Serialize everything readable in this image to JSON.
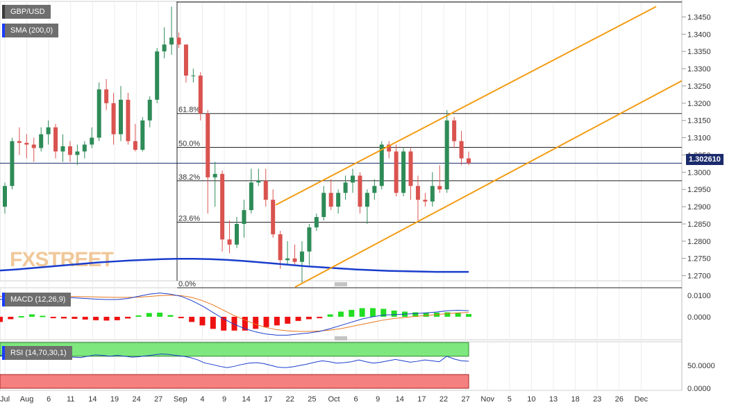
{
  "chart_data": {
    "type": "candlestick",
    "symbol": "GBP/USD",
    "indicator_label": "SMA (200,0)",
    "watermark": "FXSTREET",
    "current_price": "1.302610",
    "y_ticks": [
      "1.3450",
      "1.3400",
      "1.3350",
      "1.3300",
      "1.3250",
      "1.3200",
      "1.3150",
      "1.3100",
      "1.3050",
      "1.3000",
      "1.2950",
      "1.2900",
      "1.2850",
      "1.2800",
      "1.2750",
      "1.2700"
    ],
    "x_ticks": [
      "Jul",
      "Aug",
      "6",
      "11",
      "14",
      "19",
      "24",
      "27",
      "Sep",
      "4",
      "9",
      "14",
      "17",
      "22",
      "25",
      "Oct",
      "6",
      "9",
      "14",
      "17",
      "22",
      "27",
      "Nov",
      "5",
      "10",
      "13",
      "18",
      "23",
      "26",
      "Dec"
    ],
    "fibonacci": [
      {
        "label": "61.8%",
        "price": 1.317
      },
      {
        "label": "50.0%",
        "price": 1.3072
      },
      {
        "label": "38.2%",
        "price": 1.2975
      },
      {
        "label": "23.6%",
        "price": 1.2855
      },
      {
        "label": "0.0%",
        "price": 1.2665
      }
    ],
    "candles": [
      [
        1.29,
        1.297,
        1.288,
        1.296
      ],
      [
        1.296,
        1.31,
        1.295,
        1.309
      ],
      [
        1.309,
        1.313,
        1.305,
        1.3085
      ],
      [
        1.3085,
        1.311,
        1.304,
        1.308
      ],
      [
        1.308,
        1.31,
        1.303,
        1.307
      ],
      [
        1.307,
        1.313,
        1.306,
        1.311
      ],
      [
        1.311,
        1.315,
        1.308,
        1.313
      ],
      [
        1.313,
        1.314,
        1.304,
        1.306
      ],
      [
        1.306,
        1.311,
        1.303,
        1.3075
      ],
      [
        1.3075,
        1.309,
        1.303,
        1.305
      ],
      [
        1.305,
        1.308,
        1.302,
        1.306
      ],
      [
        1.306,
        1.309,
        1.304,
        1.308
      ],
      [
        1.308,
        1.313,
        1.307,
        1.31
      ],
      [
        1.31,
        1.326,
        1.309,
        1.324
      ],
      [
        1.324,
        1.327,
        1.318,
        1.32
      ],
      [
        1.32,
        1.323,
        1.308,
        1.311
      ],
      [
        1.311,
        1.325,
        1.309,
        1.321
      ],
      [
        1.321,
        1.323,
        1.308,
        1.309
      ],
      [
        1.309,
        1.314,
        1.306,
        1.3065
      ],
      [
        1.3065,
        1.316,
        1.306,
        1.315
      ],
      [
        1.315,
        1.322,
        1.313,
        1.321
      ],
      [
        1.321,
        1.336,
        1.32,
        1.335
      ],
      [
        1.335,
        1.342,
        1.333,
        1.337
      ],
      [
        1.337,
        1.348,
        1.334,
        1.339
      ],
      [
        1.339,
        1.3405,
        1.336,
        1.337
      ],
      [
        1.337,
        1.337,
        1.326,
        1.328
      ],
      [
        1.328,
        1.33,
        1.326,
        1.328
      ],
      [
        1.328,
        1.329,
        1.315,
        1.317
      ],
      [
        1.317,
        1.318,
        1.288,
        1.2985
      ],
      [
        1.2985,
        1.303,
        1.29,
        1.2995
      ],
      [
        1.2995,
        1.3005,
        1.277,
        1.2805
      ],
      [
        1.2805,
        1.286,
        1.2765,
        1.279
      ],
      [
        1.279,
        1.287,
        1.278,
        1.285
      ],
      [
        1.285,
        1.292,
        1.281,
        1.289
      ],
      [
        1.289,
        1.301,
        1.288,
        1.297
      ],
      [
        1.297,
        1.301,
        1.296,
        1.2975
      ],
      [
        1.2975,
        1.301,
        1.29,
        1.292
      ],
      [
        1.292,
        1.295,
        1.281,
        1.282
      ],
      [
        1.282,
        1.283,
        1.272,
        1.2745
      ],
      [
        1.2745,
        1.28,
        1.273,
        1.275
      ],
      [
        1.275,
        1.279,
        1.273,
        1.274
      ],
      [
        1.274,
        1.28,
        1.268,
        1.277
      ],
      [
        1.277,
        1.285,
        1.273,
        1.284
      ],
      [
        1.284,
        1.288,
        1.283,
        1.287
      ],
      [
        1.287,
        1.296,
        1.286,
        1.294
      ],
      [
        1.294,
        1.298,
        1.289,
        1.29
      ],
      [
        1.29,
        1.295,
        1.288,
        1.294
      ],
      [
        1.294,
        1.299,
        1.292,
        1.297
      ],
      [
        1.297,
        1.301,
        1.294,
        1.299
      ],
      [
        1.299,
        1.3,
        1.288,
        1.29
      ],
      [
        1.29,
        1.295,
        1.285,
        1.294
      ],
      [
        1.294,
        1.298,
        1.292,
        1.296
      ],
      [
        1.296,
        1.309,
        1.295,
        1.308
      ],
      [
        1.308,
        1.309,
        1.304,
        1.306
      ],
      [
        1.306,
        1.308,
        1.293,
        1.294
      ],
      [
        1.294,
        1.307,
        1.293,
        1.306
      ],
      [
        1.306,
        1.307,
        1.292,
        1.296
      ],
      [
        1.296,
        1.299,
        1.286,
        1.292
      ],
      [
        1.292,
        1.294,
        1.29,
        1.2915
      ],
      [
        1.2915,
        1.3,
        1.29,
        1.296
      ],
      [
        1.296,
        1.302,
        1.294,
        1.295
      ],
      [
        1.295,
        1.318,
        1.294,
        1.315
      ],
      [
        1.315,
        1.316,
        1.307,
        1.309
      ],
      [
        1.309,
        1.312,
        1.302,
        1.304
      ],
      [
        1.304,
        1.306,
        1.302,
        1.3026
      ]
    ],
    "sma200": [
      1.2715,
      1.2718,
      1.2722,
      1.2726,
      1.273,
      1.2734,
      1.2738,
      1.2741,
      1.2744,
      1.2746,
      1.2748,
      1.2749,
      1.2749,
      1.2748,
      1.2746,
      1.2743,
      1.2739,
      1.2735,
      1.2731,
      1.2727,
      1.2724,
      1.2721,
      1.2718,
      1.2716,
      1.2714,
      1.2713,
      1.2712,
      1.2711,
      1.2711,
      1.2711
    ],
    "channel": {
      "upper": [
        [
          1.291,
          "start"
        ],
        [
          1.348,
          "end"
        ]
      ],
      "lower": [
        [
          1.267,
          "start"
        ],
        [
          1.327,
          "end"
        ]
      ]
    },
    "macd": {
      "label": "MACD (12,26,9)",
      "y_ticks": [
        "0.0100",
        "0.0000"
      ],
      "macd_line": [
        0.008,
        0.009,
        0.01,
        0.0105,
        0.01,
        0.0095,
        0.009,
        0.0088,
        0.0085,
        0.0082,
        0.008,
        0.008,
        0.0085,
        0.0095,
        0.0105,
        0.011,
        0.0105,
        0.0095,
        0.0075,
        0.005,
        0.002,
        -0.001,
        -0.0035,
        -0.0055,
        -0.007,
        -0.008,
        -0.0085,
        -0.0085,
        -0.008,
        -0.0075,
        -0.0068,
        -0.0055,
        -0.004,
        -0.0025,
        -0.001,
        0.0,
        0.0008,
        0.001,
        0.0012,
        0.0015,
        0.0018,
        0.0022,
        0.0028,
        0.003,
        0.0028
      ],
      "signal_line": [
        0.0095,
        0.0097,
        0.0098,
        0.0098,
        0.0097,
        0.0096,
        0.0095,
        0.0094,
        0.0093,
        0.0092,
        0.0091,
        0.009,
        0.009,
        0.0091,
        0.0094,
        0.0098,
        0.01,
        0.0098,
        0.009,
        0.0075,
        0.0055,
        0.003,
        0.0005,
        -0.0015,
        -0.0035,
        -0.005,
        -0.006,
        -0.0065,
        -0.0068,
        -0.0068,
        -0.0066,
        -0.0062,
        -0.0055,
        -0.0045,
        -0.0035,
        -0.0025,
        -0.0015,
        -0.0008,
        -0.0003,
        0.0002,
        0.0006,
        0.001,
        0.0015,
        0.0018,
        0.002
      ]
    },
    "rsi": {
      "label": "RSI (14,70,30,1)",
      "y_ticks": [
        "50.0000",
        "0.0000"
      ],
      "values": [
        72,
        73,
        72,
        70,
        71,
        72,
        73,
        70,
        68,
        70,
        68,
        67,
        70,
        73,
        72,
        70,
        72,
        70,
        68,
        69,
        71,
        73,
        75,
        74,
        72,
        70,
        67,
        62,
        55,
        52,
        48,
        45,
        48,
        52,
        55,
        56,
        54,
        50,
        46,
        45,
        47,
        50,
        53,
        57,
        60,
        58,
        55,
        56,
        58,
        62,
        58,
        55,
        57,
        60,
        63,
        60,
        57,
        59,
        62,
        60,
        58,
        70,
        64,
        60,
        59
      ]
    }
  }
}
